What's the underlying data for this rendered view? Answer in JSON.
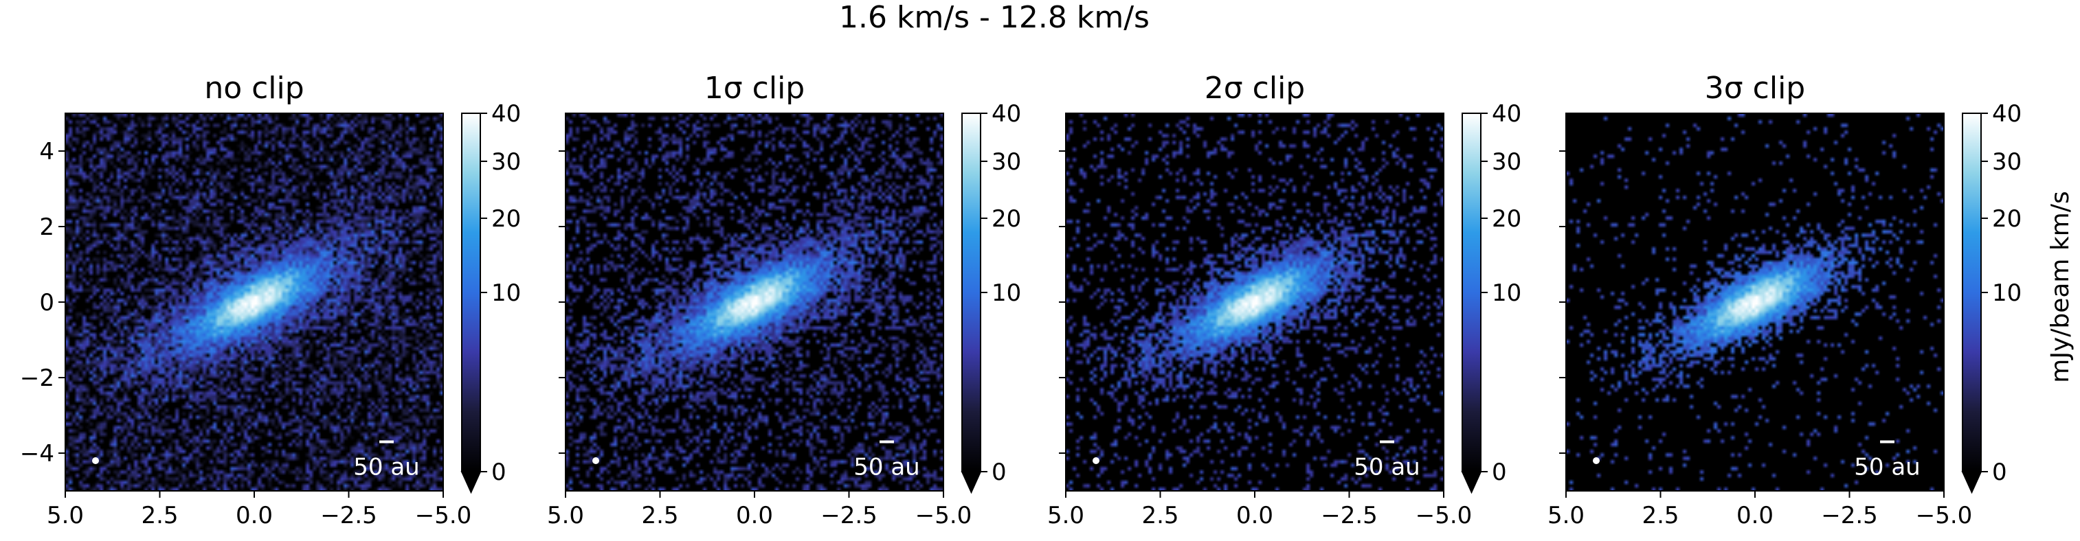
{
  "figure": {
    "suptitle": "1.6 km/s - 12.8 km/s",
    "colorbar_label": "mJy/beam km/s",
    "scalebar_label": "50 au"
  },
  "chart_data": [
    {
      "type": "heatmap",
      "title": "no clip",
      "clip_sigma": 0,
      "xlim": [
        5.0,
        -5.0
      ],
      "ylim": [
        -5.0,
        5.0
      ],
      "xticks": [
        "5.0",
        "2.5",
        "0.0",
        "−2.5",
        "−5.0"
      ],
      "yticks": [
        "−4",
        "−2",
        "0",
        "2",
        "4"
      ],
      "colorbar": {
        "range": [
          0,
          40
        ],
        "ticks": [
          "0",
          "10",
          "20",
          "30",
          "40"
        ],
        "extend": "min",
        "colors": [
          "#000000",
          "#1b1b3a",
          "#3a3aa8",
          "#2f6fe0",
          "#2e9be8",
          "#8fd3e8",
          "#ffffff"
        ]
      },
      "beam": {
        "x": 4.2,
        "y": -4.2
      },
      "scalebar": {
        "length_arcsec": 0.38,
        "x_center": -3.5,
        "y": -3.7
      }
    },
    {
      "type": "heatmap",
      "title": "1σ clip",
      "clip_sigma": 1,
      "xlim": [
        5.0,
        -5.0
      ],
      "ylim": [
        -5.0,
        5.0
      ],
      "xticks": [
        "5.0",
        "2.5",
        "0.0",
        "−2.5",
        "−5.0"
      ],
      "yticks": [
        "−4",
        "−2",
        "0",
        "2",
        "4"
      ],
      "colorbar": {
        "range": [
          0,
          40
        ],
        "ticks": [
          "0",
          "10",
          "20",
          "30",
          "40"
        ],
        "extend": "min",
        "colors": [
          "#000000",
          "#1b1b3a",
          "#3a3aa8",
          "#2f6fe0",
          "#2e9be8",
          "#8fd3e8",
          "#ffffff"
        ]
      },
      "beam": {
        "x": 4.2,
        "y": -4.2
      },
      "scalebar": {
        "length_arcsec": 0.38,
        "x_center": -3.5,
        "y": -3.7
      }
    },
    {
      "type": "heatmap",
      "title": "2σ clip",
      "clip_sigma": 2,
      "xlim": [
        5.0,
        -5.0
      ],
      "ylim": [
        -5.0,
        5.0
      ],
      "xticks": [
        "5.0",
        "2.5",
        "0.0",
        "−2.5",
        "−5.0"
      ],
      "yticks": [
        "−4",
        "−2",
        "0",
        "2",
        "4"
      ],
      "colorbar": {
        "range": [
          0,
          40
        ],
        "ticks": [
          "0",
          "10",
          "20",
          "30",
          "40"
        ],
        "extend": "min",
        "colors": [
          "#000000",
          "#1b1b3a",
          "#3a3aa8",
          "#2f6fe0",
          "#2e9be8",
          "#8fd3e8",
          "#ffffff"
        ]
      },
      "beam": {
        "x": 4.2,
        "y": -4.2
      },
      "scalebar": {
        "length_arcsec": 0.38,
        "x_center": -3.5,
        "y": -3.7
      }
    },
    {
      "type": "heatmap",
      "title": "3σ clip",
      "clip_sigma": 3,
      "xlim": [
        5.0,
        -5.0
      ],
      "ylim": [
        -5.0,
        5.0
      ],
      "xticks": [
        "5.0",
        "2.5",
        "0.0",
        "−2.5",
        "−5.0"
      ],
      "yticks": [
        "−4",
        "−2",
        "0",
        "2",
        "4"
      ],
      "colorbar": {
        "range": [
          0,
          40
        ],
        "ticks": [
          "0",
          "10",
          "20",
          "30",
          "40"
        ],
        "extend": "min",
        "colors": [
          "#000000",
          "#1b1b3a",
          "#3a3aa8",
          "#2f6fe0",
          "#2e9be8",
          "#8fd3e8",
          "#ffffff"
        ]
      },
      "beam": {
        "x": 4.2,
        "y": -4.2
      },
      "scalebar": {
        "length_arcsec": 0.38,
        "x_center": -3.5,
        "y": -3.7
      }
    }
  ]
}
